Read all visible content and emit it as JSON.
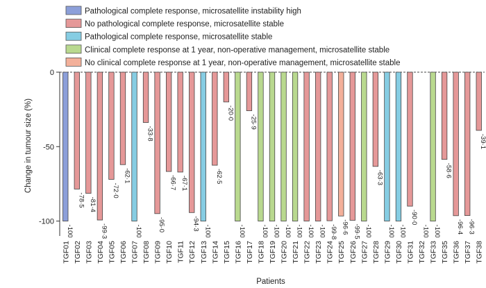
{
  "chart_data": {
    "type": "bar",
    "title": "",
    "xlabel": "Patients",
    "ylabel": "Change in tumour size (%)",
    "ylim": [
      -110,
      0
    ],
    "yticks": [
      0,
      -50,
      -100
    ],
    "ytick_labels": [
      "0",
      "-50",
      "-100"
    ],
    "grid": false,
    "legend_position": "top",
    "legend": [
      {
        "key": "pcr_msi",
        "label": "Pathological complete response, microsatellite instability high",
        "color": "#8c9fd9"
      },
      {
        "key": "no_pcr_mss",
        "label": "No pathological complete response, microsatellite stable",
        "color": "#e59898"
      },
      {
        "key": "pcr_mss",
        "label": "Pathological complete response, microsatellite stable",
        "color": "#86cde3"
      },
      {
        "key": "ccr",
        "label": "Clinical complete response at 1 year, non-operative management, microsatellite stable",
        "color": "#b9d98f"
      },
      {
        "key": "no_ccr",
        "label": "No clinical complete response at 1 year, non-operative management, microsatellite stable",
        "color": "#f3b09a"
      }
    ],
    "categories": [
      "TGF01",
      "TGF02",
      "TGF03",
      "TGF04",
      "TGF05",
      "TGF06",
      "TGF07",
      "TGF08",
      "TGF09",
      "TGF10",
      "TGF11",
      "TGF12",
      "TGF13",
      "TGF14",
      "TGF15",
      "TGF16",
      "TGF17",
      "TGF18",
      "TGF19",
      "TGF20",
      "TGF21",
      "TGF22",
      "TGF23",
      "TGF24",
      "TGF25",
      "TGF26",
      "TGF27",
      "TGF28",
      "TGF29",
      "TGF30",
      "TGF31",
      "TGF32",
      "TGF33",
      "TGF35",
      "TGF36",
      "TGF37",
      "TGF38"
    ],
    "values": [
      -100,
      -78.5,
      -81.4,
      -99.3,
      -72.0,
      -62.1,
      -100,
      -33.8,
      -95.0,
      -66.7,
      -67.1,
      -94.3,
      -100,
      -62.5,
      -20.0,
      -100,
      -25.9,
      -100,
      -100,
      -100,
      -100,
      -100,
      -100,
      -99.8,
      -96.6,
      -99.5,
      -100,
      -63.3,
      -100,
      -100,
      -90.0,
      -100,
      -100,
      -58.6,
      -96.4,
      -96.3,
      -39.1
    ],
    "value_labels": [
      "-100",
      "-78·5",
      "-81·4",
      "-99·3",
      "-72·0",
      "-62·1",
      "-100",
      "-33·8",
      "-95·0",
      "-66·7",
      "-67·1",
      "-94·3",
      "-100",
      "-62·5",
      "-20·0",
      "-100",
      "-25·9",
      "-100",
      "-100",
      "-100",
      "-100",
      "-100",
      "-100",
      "-99·8",
      "-96·6",
      "-99·5",
      "-100",
      "-63·3",
      "-100",
      "-100",
      "-90·0",
      "-100",
      "-100",
      "-58·6",
      "-96·4",
      "-96·3",
      "-39·1"
    ],
    "groups": [
      "pcr_msi",
      "no_pcr_mss",
      "no_pcr_mss",
      "no_pcr_mss",
      "no_pcr_mss",
      "no_pcr_mss",
      "pcr_mss",
      "no_pcr_mss",
      "no_pcr_mss",
      "no_pcr_mss",
      "no_pcr_mss",
      "no_pcr_mss",
      "pcr_mss",
      "no_pcr_mss",
      "no_pcr_mss",
      "ccr",
      "no_pcr_mss",
      "ccr",
      "ccr",
      "ccr",
      "ccr",
      "no_pcr_mss",
      "no_pcr_mss",
      "no_pcr_mss",
      "no_ccr",
      "no_pcr_mss",
      "ccr",
      "no_pcr_mss",
      "pcr_mss",
      "pcr_mss",
      "no_pcr_mss",
      "none",
      "ccr",
      "no_pcr_mss",
      "no_pcr_mss",
      "no_pcr_mss",
      "no_pcr_mss"
    ]
  }
}
